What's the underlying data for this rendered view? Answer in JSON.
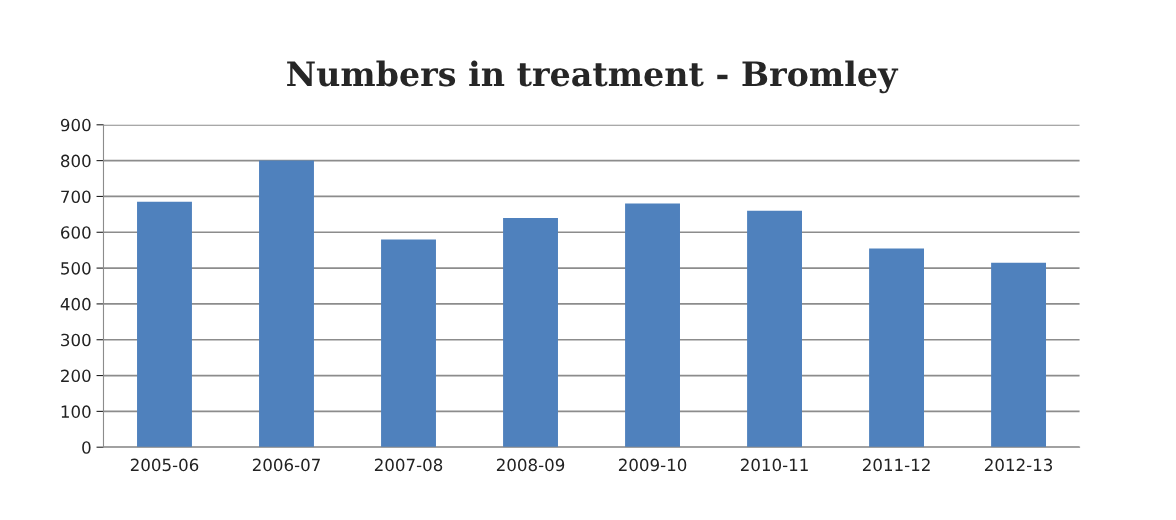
{
  "chart_data": {
    "type": "bar",
    "title": "Numbers in treatment - Bromley",
    "categories": [
      "2005-06",
      "2006-07",
      "2007-08",
      "2008-09",
      "2009-10",
      "2010-11",
      "2011-12",
      "2012-13"
    ],
    "values": [
      685,
      800,
      580,
      640,
      680,
      660,
      555,
      515
    ],
    "color": "#4f81bd",
    "ylim": [
      0,
      900
    ],
    "yticks": [
      0,
      100,
      200,
      300,
      400,
      500,
      600,
      700,
      800,
      900
    ],
    "grid": "y",
    "legend": false
  }
}
